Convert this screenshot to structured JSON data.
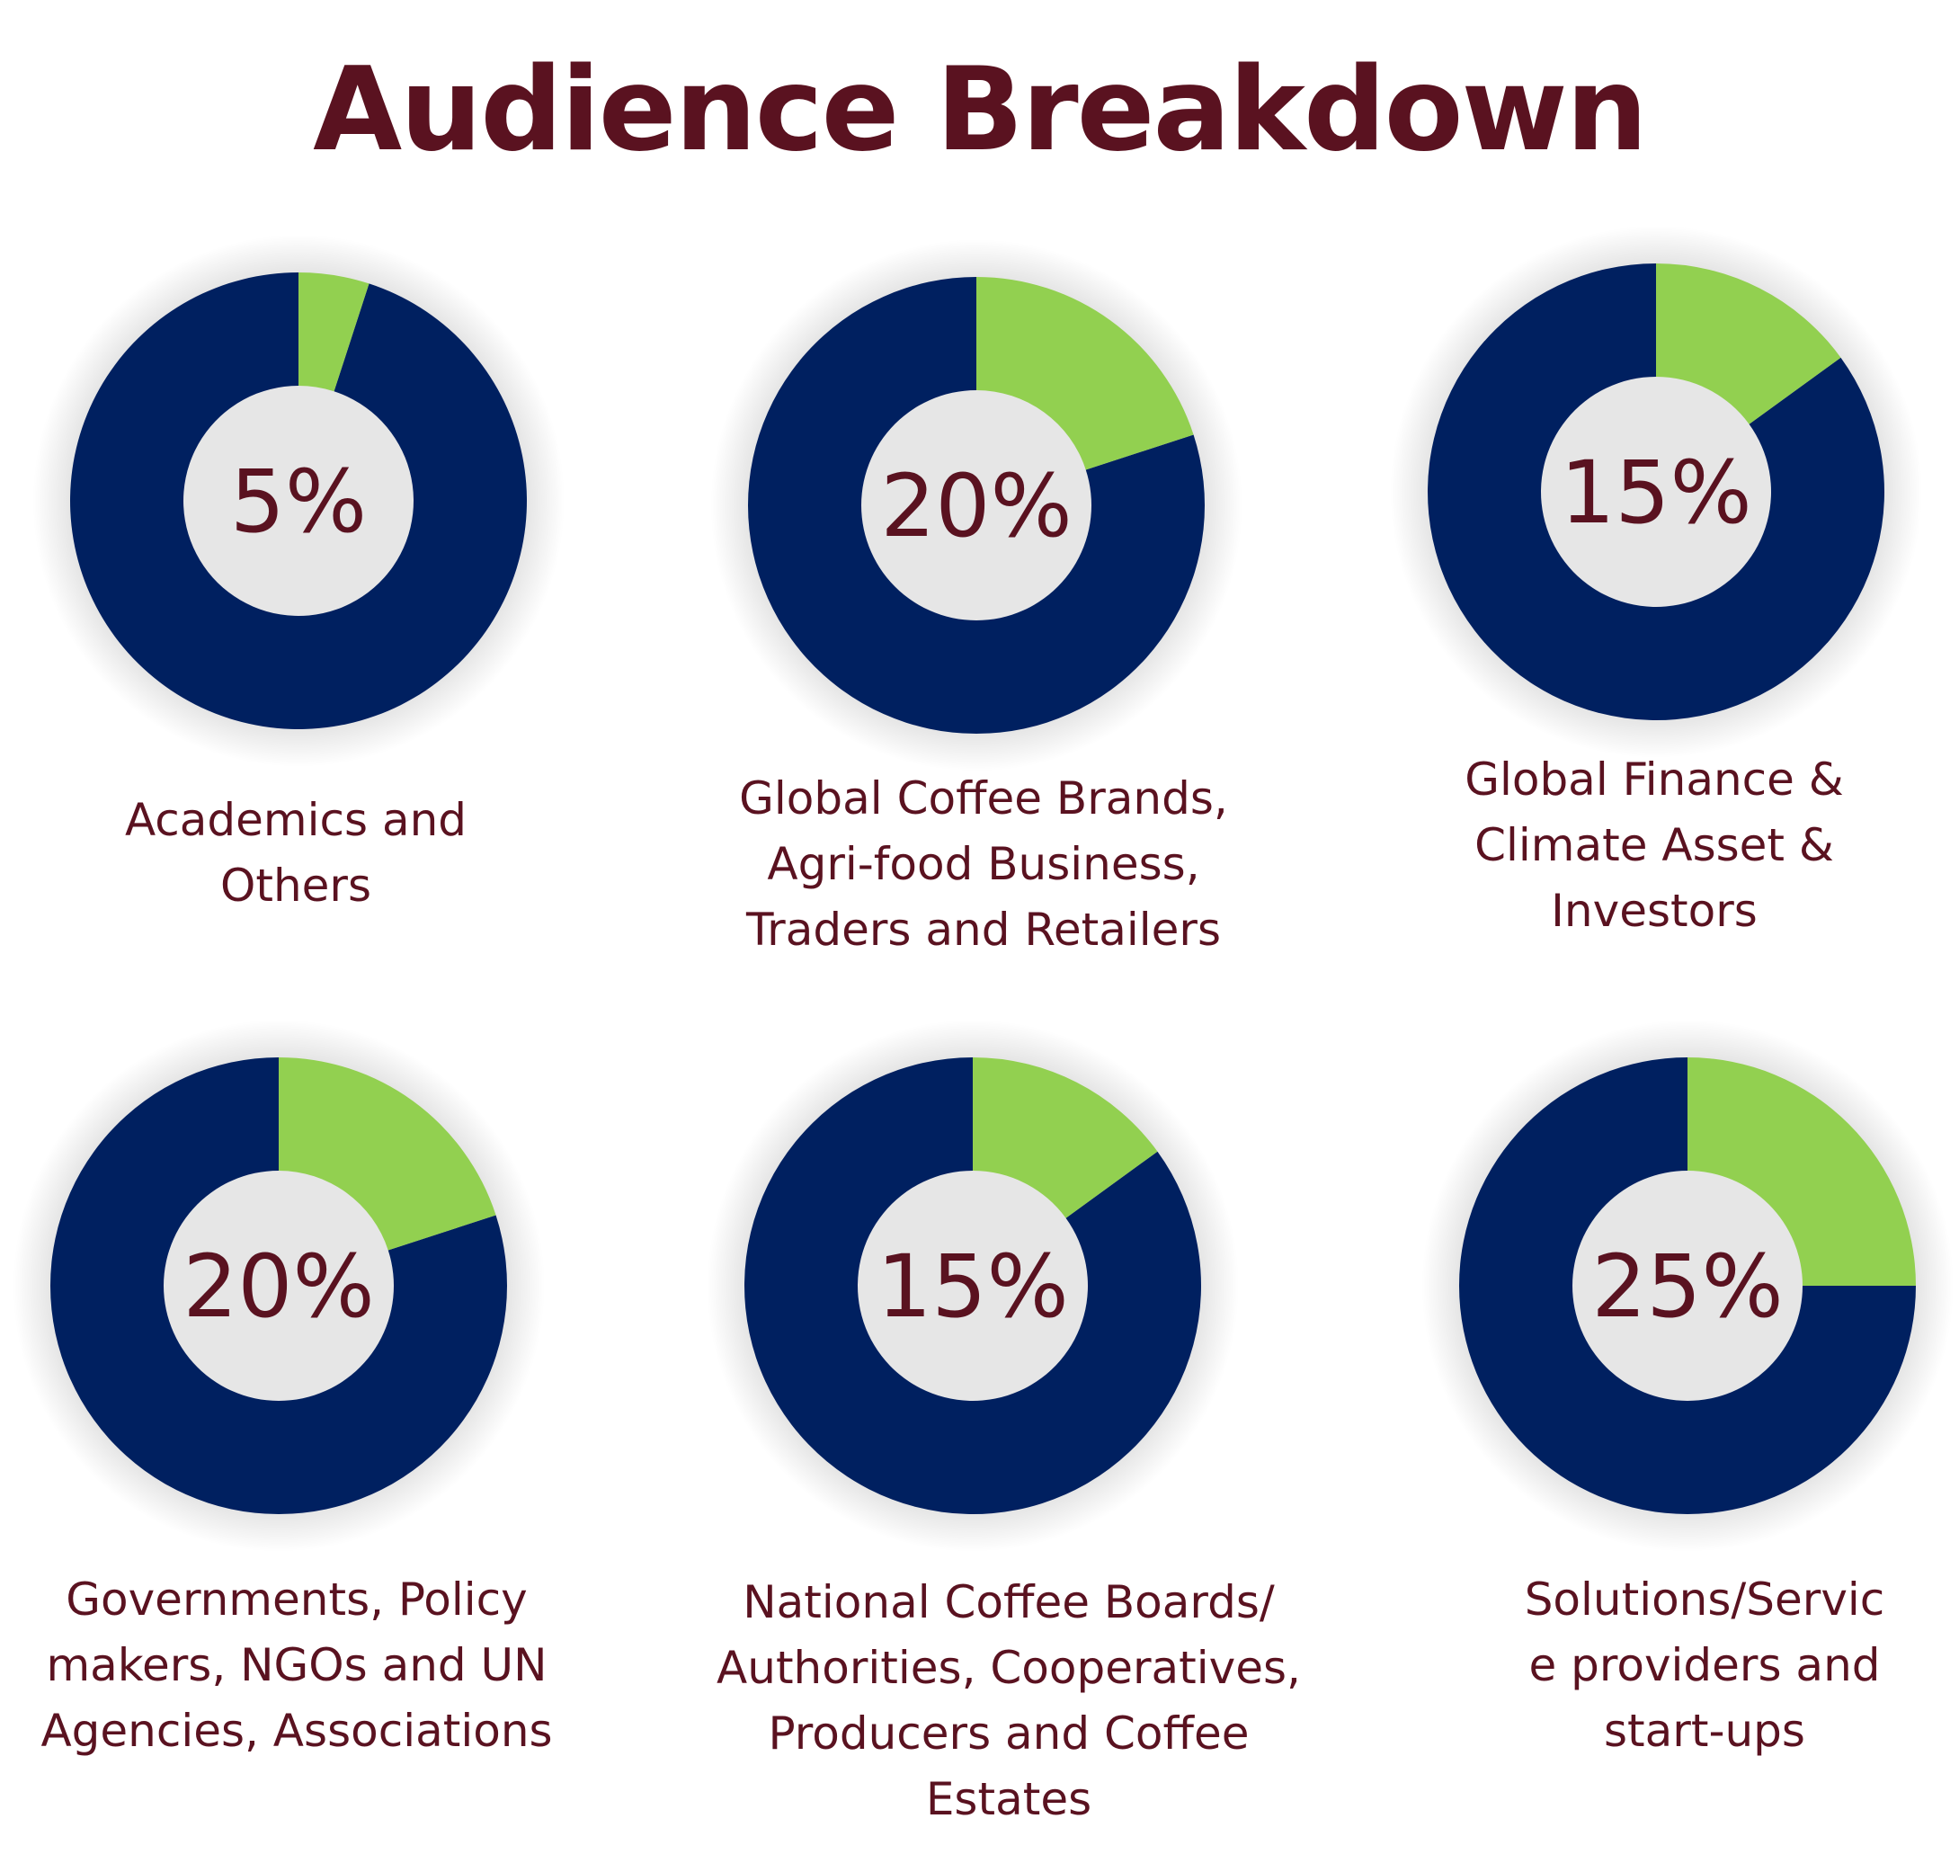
{
  "title": "Audience Breakdown",
  "colors": {
    "share": "#92d050",
    "rest": "#002060",
    "text": "#5a1220"
  },
  "chart_data": [
    {
      "type": "pie",
      "value": 5,
      "value_label": "5%",
      "label": "Academics and\nOthers"
    },
    {
      "type": "pie",
      "value": 20,
      "value_label": "20%",
      "label": "Global Coffee Brands,\nAgri-food Business,\nTraders and Retailers"
    },
    {
      "type": "pie",
      "value": 15,
      "value_label": "15%",
      "label": "Global Finance &\nClimate Asset &\nInvestors"
    },
    {
      "type": "pie",
      "value": 20,
      "value_label": "20%",
      "label": "Governments, Policy\nmakers, NGOs and UN\nAgencies, Associations"
    },
    {
      "type": "pie",
      "value": 15,
      "value_label": "15%",
      "label": "National Coffee Boards/\nAuthorities, Cooperatives,\nProducers and Coffee\nEstates"
    },
    {
      "type": "pie",
      "value": 25,
      "value_label": "25%",
      "label": "Solutions/Servic\ne providers and\nstart-ups"
    }
  ]
}
